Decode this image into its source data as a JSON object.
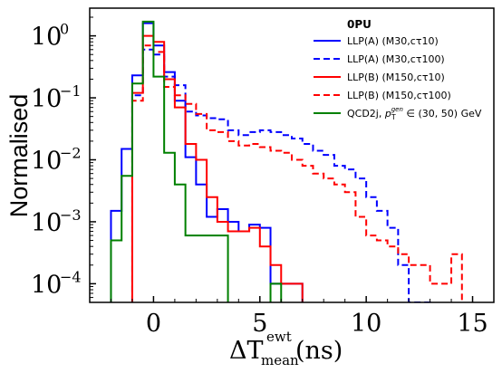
{
  "chart_data": {
    "type": "line",
    "xlabel": "ΔT",
    "xlabel_sup": "ewt",
    "xlabel_sub": "mean",
    "xlabel_unit": "(ns)",
    "ylabel": "Normalised",
    "xlim": [
      -3,
      16
    ],
    "ylim": [
      5e-05,
      2.8
    ],
    "yscale": "log",
    "xticks": [
      0,
      5,
      10,
      15
    ],
    "xtick_labels": [
      "0",
      "5",
      "10",
      "15"
    ],
    "yticks": [
      0.0001,
      0.001,
      0.01,
      0.1,
      1
    ],
    "ytick_bases": [
      "10",
      "10",
      "10",
      "10",
      "10"
    ],
    "ytick_exps": [
      "−4",
      "−3",
      "−2",
      "−1",
      "0"
    ],
    "legend_title": "0PU",
    "legend_position": "top-right",
    "grid": false,
    "bin_edges": [
      -2.0,
      -1.5,
      -1.0,
      -0.5,
      0.0,
      0.5,
      1.0,
      1.5,
      2.0,
      2.5,
      3.0,
      3.5,
      4.0,
      4.5,
      5.0,
      5.5,
      6.0,
      6.5,
      7.0,
      7.5,
      8.0,
      8.5,
      9.0,
      9.5,
      10.0,
      10.5,
      11.0,
      11.5,
      12.0,
      12.5,
      13.0,
      13.5,
      14.0,
      14.5
    ],
    "series": [
      {
        "name": "LLP(A) (M30,cτ10)",
        "color": "#0000ff",
        "dashed": false,
        "values": [
          0.0015,
          0.015,
          0.23,
          1.6,
          0.7,
          0.26,
          0.09,
          0.011,
          0.004,
          0.0012,
          0.0016,
          0.001,
          0.0007,
          0.0009,
          0.0008,
          0.0001,
          0.0001,
          0.0001,
          0.0,
          0.0,
          0.0,
          0.0,
          0.0,
          0.0,
          0.0,
          0.0,
          0.0,
          0.0,
          0.0,
          0.0,
          0.0,
          0.0,
          0.0
        ]
      },
      {
        "name": "LLP(A) (M30,cτ100)",
        "color": "#0000ff",
        "dashed": true,
        "values": [
          0.0,
          0.0,
          0.11,
          0.6,
          0.5,
          0.22,
          0.16,
          0.06,
          0.052,
          0.047,
          0.045,
          0.03,
          0.025,
          0.028,
          0.03,
          0.028,
          0.025,
          0.022,
          0.018,
          0.014,
          0.012,
          0.008,
          0.007,
          0.005,
          0.0025,
          0.0015,
          0.0008,
          0.0002,
          5e-05,
          5e-05,
          0.0,
          0.0,
          0.0
        ]
      },
      {
        "name": "LLP(B) (M150,cτ10)",
        "color": "#ff0000",
        "dashed": false,
        "values": [
          0.0,
          0.0,
          0.12,
          1.0,
          0.8,
          0.2,
          0.07,
          0.018,
          0.01,
          0.0025,
          0.001,
          0.0007,
          0.0007,
          0.0008,
          0.0004,
          0.0002,
          0.0001,
          0.0001,
          0.0,
          0.0,
          0.0,
          0.0,
          0.0,
          0.0,
          0.0,
          0.0,
          0.0,
          0.0,
          0.0,
          0.0,
          0.0,
          0.0,
          0.0
        ]
      },
      {
        "name": "LLP(B) (M150,cτ100)",
        "color": "#ff0000",
        "dashed": true,
        "values": [
          0.0,
          0.0,
          0.09,
          0.7,
          0.55,
          0.15,
          0.11,
          0.08,
          0.055,
          0.03,
          0.028,
          0.02,
          0.017,
          0.018,
          0.016,
          0.014,
          0.013,
          0.01,
          0.008,
          0.006,
          0.005,
          0.004,
          0.003,
          0.0012,
          0.0006,
          0.0005,
          0.0004,
          0.0003,
          0.0002,
          0.0002,
          0.0001,
          0.0001,
          0.0003
        ]
      },
      {
        "name": "QCD2j, ",
        "name_math": "p",
        "name_math_sub": "T",
        "name_math_sup": "gen",
        "name_tail": " ∈ (30, 50) GeV",
        "color": "#008000",
        "dashed": false,
        "values": [
          0.0005,
          0.0055,
          0.17,
          1.7,
          0.22,
          0.013,
          0.004,
          0.0006,
          0.0006,
          0.0006,
          0.0006,
          0.0,
          0.0,
          0.0,
          0.0,
          0.0001,
          0.0,
          0.0,
          0.0,
          0.0,
          0.0,
          0.0,
          0.0,
          0.0,
          0.0,
          0.0,
          0.0,
          0.0,
          0.0,
          0.0,
          0.0,
          0.0,
          0.0
        ]
      }
    ]
  }
}
